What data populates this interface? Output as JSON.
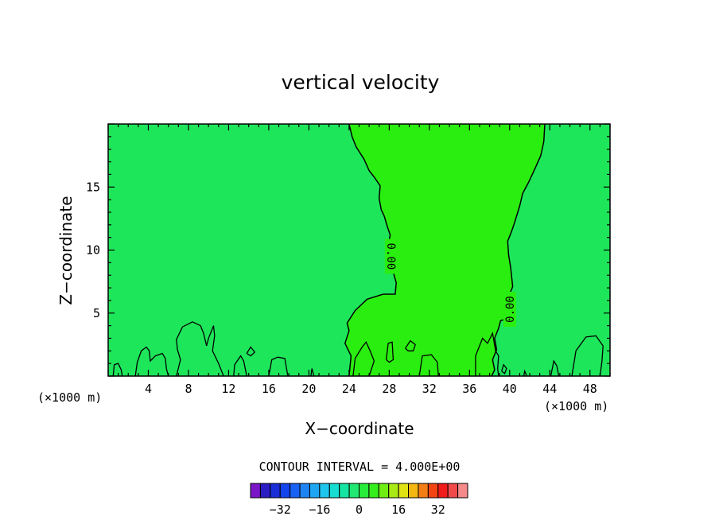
{
  "chart_data": {
    "type": "heatmap",
    "title": "vertical velocity",
    "xlabel": "X−coordinate",
    "ylabel": "Z−coordinate",
    "x_unit_left": "(×1000 m)",
    "x_unit_right": "(×1000 m)",
    "xlim": [
      0,
      50
    ],
    "ylim": [
      0,
      20
    ],
    "x_ticks": [
      4,
      8,
      12,
      16,
      20,
      24,
      28,
      32,
      36,
      40,
      44,
      48
    ],
    "y_ticks": [
      5,
      10,
      15
    ],
    "contour_interval_label": "CONTOUR INTERVAL = 4.000E+00",
    "contour_interval": 4.0,
    "contour_labels": [
      "0.00",
      "0.00"
    ],
    "colorbar": {
      "tick_labels": [
        "−32",
        "−16",
        "0",
        "16",
        "32"
      ],
      "tick_values": [
        -32,
        -16,
        0,
        16,
        32
      ],
      "levels": [
        -40,
        -36,
        -32,
        -28,
        -24,
        -20,
        -16,
        -12,
        -8,
        -4,
        0,
        4,
        8,
        12,
        16,
        20,
        24,
        28,
        32,
        36,
        40
      ],
      "colors": [
        "#7a16c8",
        "#2c1cc4",
        "#1a2ed8",
        "#1444ec",
        "#1a62f4",
        "#1e84f4",
        "#1ea6f4",
        "#1ec6ee",
        "#16dcd2",
        "#16e4a2",
        "#20e872",
        "#28ec3a",
        "#34ee1c",
        "#70ee14",
        "#aaea14",
        "#e0e414",
        "#f4b814",
        "#f47e14",
        "#f44414",
        "#f01c1c",
        "#f04a4a",
        "#f48a8a"
      ]
    },
    "fields": {
      "background_range": [
        -4,
        0
      ],
      "background_color": "#1ee65a",
      "updraft_range": [
        0,
        4
      ],
      "updraft_color": "#2aee10"
    },
    "updraft_zero_contour_left": [
      [
        24.0,
        0
      ],
      [
        24.2,
        1.6
      ],
      [
        23.6,
        2.6
      ],
      [
        24.0,
        3.6
      ],
      [
        23.8,
        4.2
      ],
      [
        24.6,
        5.2
      ],
      [
        25.8,
        6.1
      ],
      [
        27.4,
        6.5
      ],
      [
        28.6,
        6.5
      ],
      [
        28.7,
        7.4
      ],
      [
        28.2,
        8.8
      ],
      [
        28.0,
        9.6
      ],
      [
        27.9,
        10.4
      ],
      [
        28.1,
        11.2
      ],
      [
        27.8,
        11.9
      ],
      [
        27.5,
        12.7
      ],
      [
        27.2,
        13.2
      ],
      [
        27.0,
        14.1
      ],
      [
        27.1,
        15.1
      ],
      [
        26.5,
        15.8
      ],
      [
        26.0,
        16.3
      ],
      [
        25.5,
        17.2
      ],
      [
        24.7,
        18.2
      ],
      [
        24.3,
        19.0
      ],
      [
        24.0,
        20.0
      ]
    ],
    "updraft_zero_contour_right": [
      [
        43.5,
        20.0
      ],
      [
        43.4,
        18.6
      ],
      [
        43.1,
        17.5
      ],
      [
        42.6,
        16.6
      ],
      [
        41.9,
        15.4
      ],
      [
        41.3,
        14.5
      ],
      [
        41.0,
        13.5
      ],
      [
        40.5,
        12.2
      ],
      [
        40.2,
        11.5
      ],
      [
        39.8,
        10.7
      ],
      [
        39.9,
        9.6
      ],
      [
        40.1,
        8.6
      ],
      [
        40.3,
        7.1
      ],
      [
        39.9,
        6.3
      ],
      [
        39.6,
        5.4
      ],
      [
        39.5,
        4.5
      ],
      [
        39.1,
        4.4
      ],
      [
        38.9,
        3.8
      ],
      [
        38.5,
        3.0
      ],
      [
        38.7,
        2.1
      ],
      [
        38.3,
        1.3
      ],
      [
        38.5,
        0.5
      ],
      [
        38.2,
        0
      ]
    ],
    "low_level_zero_contours": [
      [
        [
          0.5,
          0
        ],
        [
          0.6,
          0.9
        ],
        [
          1.0,
          1.0
        ],
        [
          1.3,
          0.5
        ],
        [
          1.4,
          0
        ]
      ],
      [
        [
          2.7,
          0
        ],
        [
          2.9,
          1.1
        ],
        [
          3.3,
          2.0
        ],
        [
          3.8,
          2.3
        ],
        [
          4.1,
          2.0
        ],
        [
          4.2,
          1.2
        ],
        [
          4.7,
          1.6
        ],
        [
          5.4,
          1.8
        ],
        [
          5.7,
          1.4
        ],
        [
          5.8,
          0.6
        ],
        [
          6.0,
          0
        ]
      ],
      [
        [
          6.8,
          0
        ],
        [
          7.2,
          1.3
        ],
        [
          6.9,
          2.1
        ],
        [
          6.8,
          2.9
        ],
        [
          7.4,
          3.9
        ],
        [
          8.4,
          4.3
        ],
        [
          9.2,
          4.0
        ],
        [
          9.5,
          3.4
        ],
        [
          9.8,
          2.4
        ],
        [
          10.0,
          3.0
        ],
        [
          10.5,
          4.0
        ],
        [
          10.6,
          3.2
        ],
        [
          10.4,
          2.0
        ],
        [
          11.0,
          1.0
        ],
        [
          11.5,
          0
        ]
      ],
      [
        [
          12.5,
          0
        ],
        [
          12.6,
          0.9
        ],
        [
          13.2,
          1.6
        ],
        [
          13.5,
          1.2
        ],
        [
          13.8,
          0
        ]
      ],
      [
        [
          13.8,
          1.8
        ],
        [
          14.2,
          2.3
        ],
        [
          14.6,
          1.9
        ],
        [
          14.2,
          1.6
        ],
        [
          13.8,
          1.8
        ]
      ],
      [
        [
          16.0,
          0
        ],
        [
          16.3,
          1.3
        ],
        [
          16.9,
          1.5
        ],
        [
          17.6,
          1.4
        ],
        [
          17.9,
          0
        ]
      ],
      [
        [
          20.2,
          0
        ],
        [
          20.3,
          0.6
        ],
        [
          20.5,
          0
        ]
      ],
      [
        [
          24.4,
          0
        ],
        [
          24.6,
          1.4
        ],
        [
          25.3,
          2.3
        ],
        [
          25.7,
          2.7
        ],
        [
          26.1,
          2.0
        ],
        [
          26.5,
          1.2
        ],
        [
          26.0,
          0
        ]
      ],
      [
        [
          27.7,
          1.3
        ],
        [
          27.9,
          2.6
        ],
        [
          28.3,
          2.7
        ],
        [
          28.4,
          1.3
        ],
        [
          28.0,
          1.1
        ],
        [
          27.7,
          1.3
        ]
      ],
      [
        [
          29.6,
          2.2
        ],
        [
          30.1,
          2.8
        ],
        [
          30.6,
          2.5
        ],
        [
          30.4,
          2.0
        ],
        [
          29.9,
          2.0
        ],
        [
          29.6,
          2.2
        ]
      ],
      [
        [
          31.0,
          0
        ],
        [
          31.3,
          1.6
        ],
        [
          32.2,
          1.7
        ],
        [
          32.8,
          1.1
        ],
        [
          32.9,
          0
        ]
      ],
      [
        [
          36.6,
          0
        ],
        [
          36.6,
          1.6
        ],
        [
          37.0,
          2.4
        ],
        [
          37.3,
          3.0
        ],
        [
          37.8,
          2.6
        ],
        [
          38.3,
          3.4
        ],
        [
          38.6,
          2.0
        ],
        [
          38.9,
          1.6
        ],
        [
          38.8,
          0.6
        ],
        [
          38.9,
          0
        ]
      ],
      [
        [
          39.2,
          0.4
        ],
        [
          39.4,
          0.9
        ],
        [
          39.7,
          0.6
        ],
        [
          39.5,
          0.2
        ],
        [
          39.2,
          0.4
        ]
      ],
      [
        [
          41.4,
          0
        ],
        [
          41.5,
          0.4
        ],
        [
          41.7,
          0
        ]
      ],
      [
        [
          44.1,
          0
        ],
        [
          44.4,
          1.2
        ],
        [
          44.7,
          0.8
        ],
        [
          44.9,
          0
        ]
      ],
      [
        [
          46.2,
          0
        ],
        [
          46.6,
          2.0
        ],
        [
          47.6,
          3.1
        ],
        [
          48.6,
          3.2
        ],
        [
          49.3,
          2.4
        ],
        [
          49.2,
          1.2
        ],
        [
          49.0,
          0
        ]
      ]
    ]
  }
}
